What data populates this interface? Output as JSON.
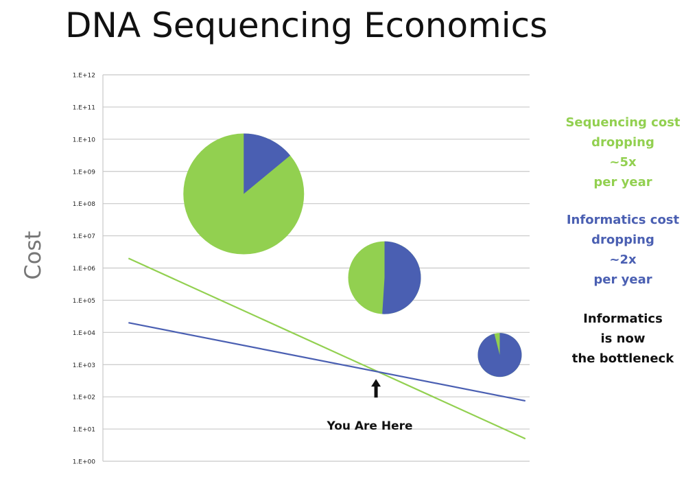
{
  "title": "DNA Sequencing Economics",
  "colors": {
    "sequencing": "#92d050",
    "informatics": "#4a5fb2",
    "grid": "#c8c8c8"
  },
  "chart_data": {
    "type": "line",
    "ylabel": "Cost",
    "xlabel": "",
    "yscale": "log",
    "ylim": [
      1,
      1000000000000
    ],
    "grid": true,
    "y_ticks": [
      "1.E+00",
      "1.E+01",
      "1.E+02",
      "1.E+03",
      "1.E+04",
      "1.E+05",
      "1.E+06",
      "1.E+07",
      "1.E+08",
      "1.E+09",
      "1.E+10",
      "1.E+11",
      "1.E+12"
    ],
    "series": [
      {
        "name": "Sequencing",
        "x": [
          0.06,
          0.99
        ],
        "y": [
          2000000,
          5
        ]
      },
      {
        "name": "Informatics",
        "x": [
          0.06,
          0.99
        ],
        "y": [
          20000,
          75
        ]
      }
    ],
    "pies": [
      {
        "x": 0.33,
        "y": 200000000,
        "size": 88,
        "sequencing_share": 0.86,
        "informatics_share": 0.14
      },
      {
        "x": 0.66,
        "y": 500000,
        "size": 53,
        "sequencing_share": 0.49,
        "informatics_share": 0.51
      },
      {
        "x": 0.93,
        "y": 2000,
        "size": 32,
        "sequencing_share": 0.04,
        "informatics_share": 0.96
      }
    ],
    "annotation": {
      "text": "You Are Here",
      "x": 0.64,
      "y": 180
    }
  },
  "notes": {
    "sequencing": [
      "Sequencing cost",
      "dropping",
      "~5x",
      "per year"
    ],
    "informatics": [
      "Informatics cost",
      "dropping",
      "~2x",
      "per year"
    ],
    "bottleneck": [
      "Informatics",
      "is now",
      "the bottleneck"
    ]
  }
}
